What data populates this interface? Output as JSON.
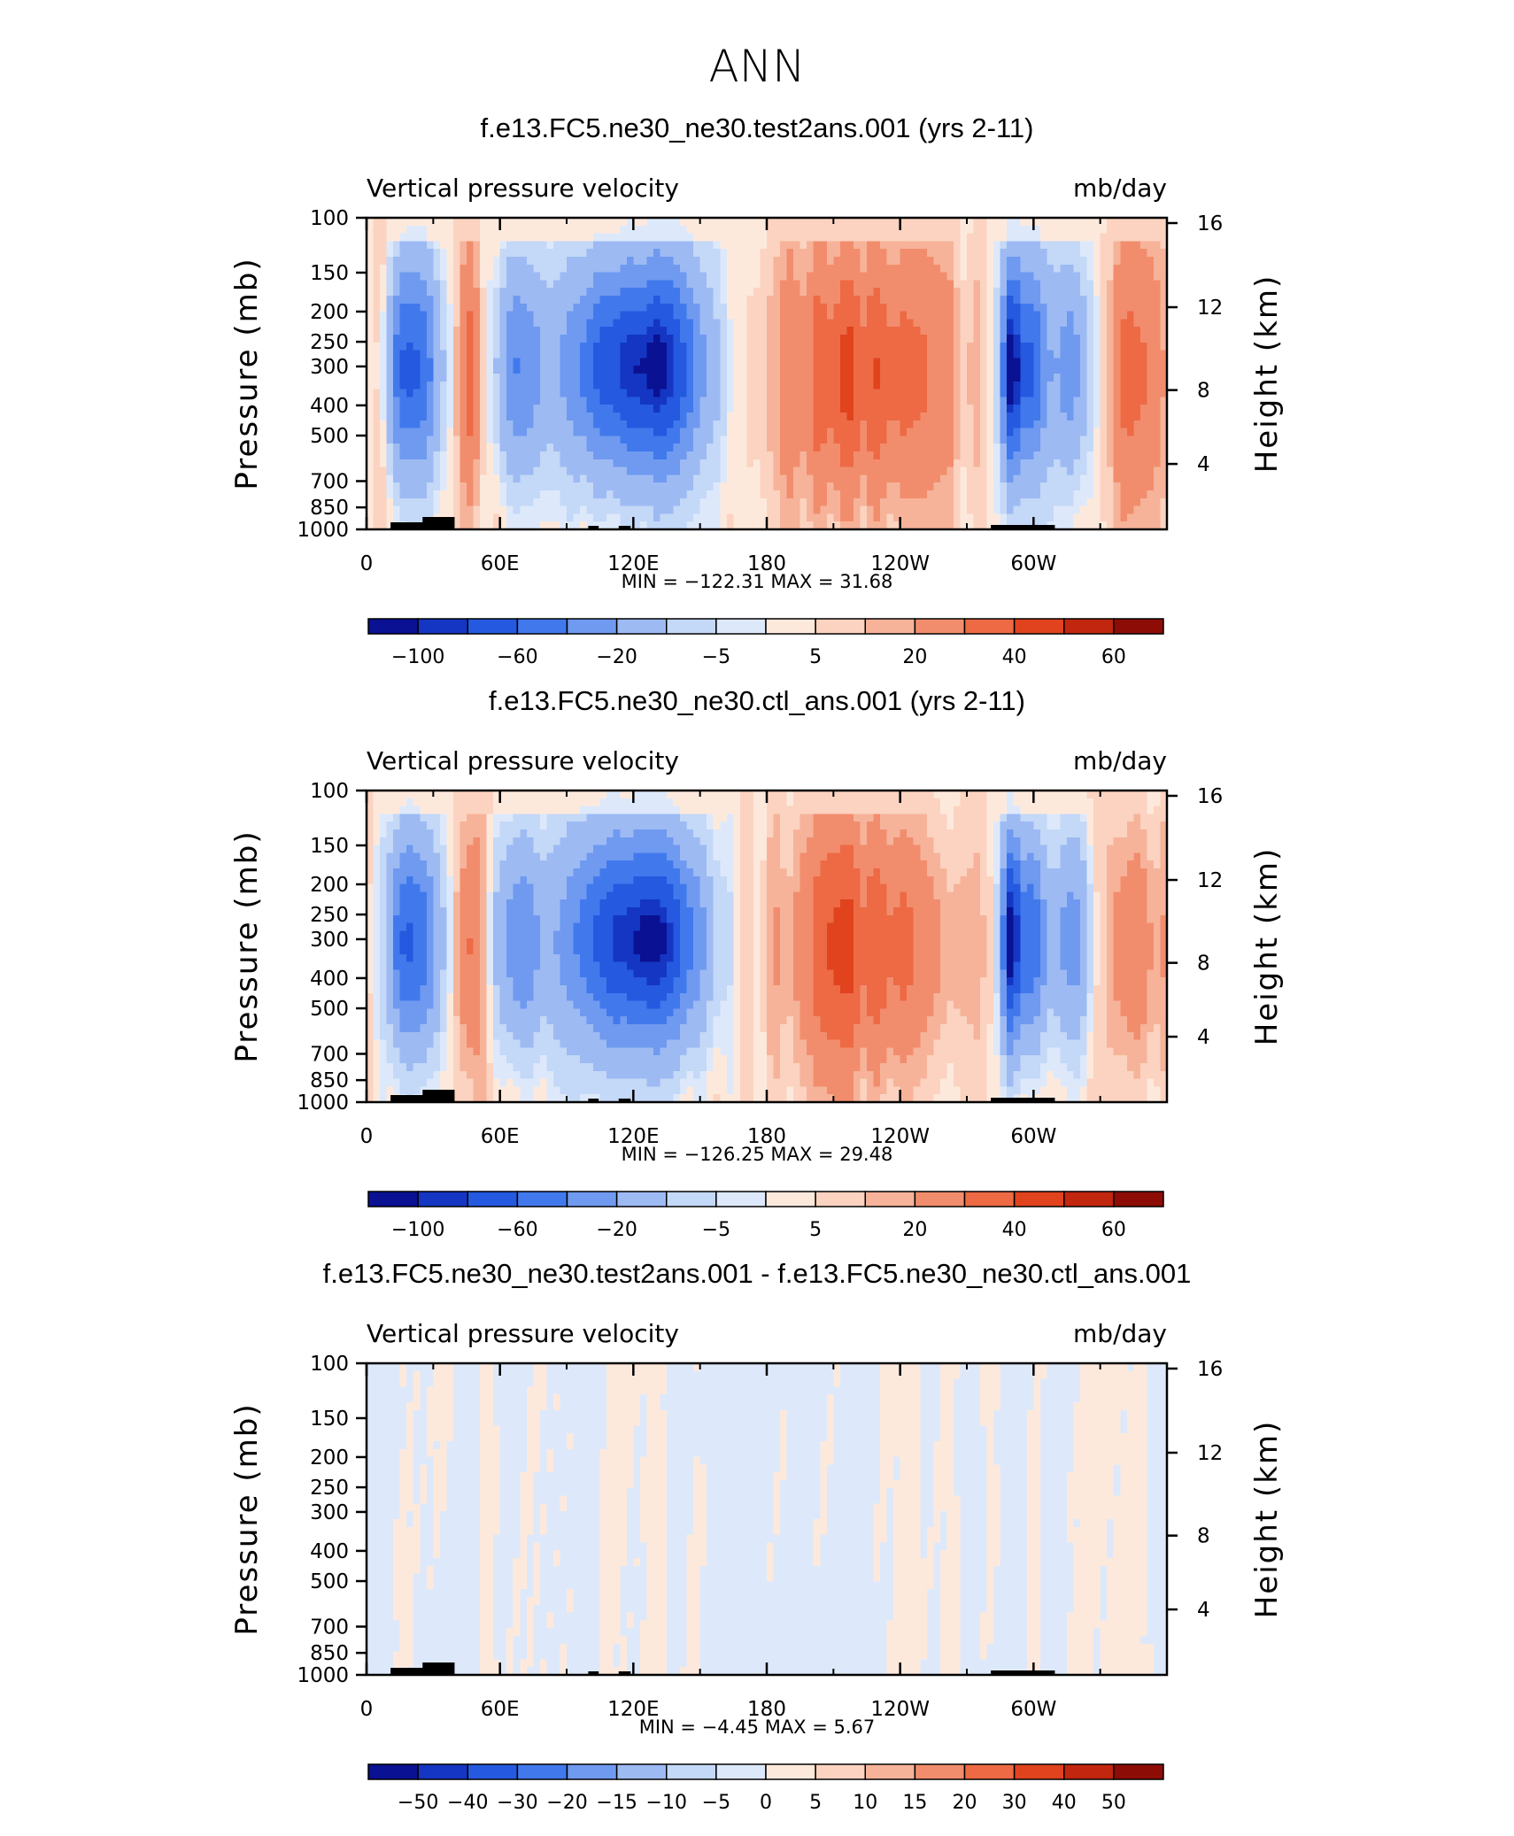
{
  "title": "ANN",
  "chart_data": [
    {
      "type": "heatmap",
      "title": "f.e13.FC5.ne30_ne30.test2ans.001 (yrs 2-11)",
      "left_label": "Vertical pressure velocity",
      "right_label": "mb/day",
      "ylabel": "Pressure (mb)",
      "ylabel_right": "Height (km)",
      "x_ticks": [
        "0",
        "60E",
        "120E",
        "180",
        "120W",
        "60W"
      ],
      "y_ticks": [
        "100",
        "150",
        "200",
        "250",
        "300",
        "400",
        "500",
        "700",
        "850",
        "1000"
      ],
      "y_ticks_right": [
        "16",
        "12",
        "8",
        "4"
      ],
      "stats": "MIN =  −122.31   MAX =   31.68",
      "colorbar_labels": [
        "−100",
        "−60",
        "−20",
        "−5",
        "5",
        "20",
        "40",
        "60"
      ],
      "ylim": [
        1000,
        100
      ],
      "xlim": [
        0,
        360
      ]
    },
    {
      "type": "heatmap",
      "title": "f.e13.FC5.ne30_ne30.ctl_ans.001 (yrs 2-11)",
      "left_label": "Vertical pressure velocity",
      "right_label": "mb/day",
      "ylabel": "Pressure (mb)",
      "ylabel_right": "Height (km)",
      "x_ticks": [
        "0",
        "60E",
        "120E",
        "180",
        "120W",
        "60W"
      ],
      "y_ticks": [
        "100",
        "150",
        "200",
        "250",
        "300",
        "400",
        "500",
        "700",
        "850",
        "1000"
      ],
      "y_ticks_right": [
        "16",
        "12",
        "8",
        "4"
      ],
      "stats": "MIN =  −126.25   MAX =   29.48",
      "colorbar_labels": [
        "−100",
        "−60",
        "−20",
        "−5",
        "5",
        "20",
        "40",
        "60"
      ],
      "ylim": [
        1000,
        100
      ],
      "xlim": [
        0,
        360
      ]
    },
    {
      "type": "heatmap",
      "title": "f.e13.FC5.ne30_ne30.test2ans.001 - f.e13.FC5.ne30_ne30.ctl_ans.001",
      "left_label": "Vertical pressure velocity",
      "right_label": "mb/day",
      "ylabel": "Pressure (mb)",
      "ylabel_right": "Height (km)",
      "x_ticks": [
        "0",
        "60E",
        "120E",
        "180",
        "120W",
        "60W"
      ],
      "y_ticks": [
        "100",
        "150",
        "200",
        "250",
        "300",
        "400",
        "500",
        "700",
        "850",
        "1000"
      ],
      "y_ticks_right": [
        "16",
        "12",
        "8",
        "4"
      ],
      "stats": "MIN =    −4.45   MAX =     5.67",
      "colorbar_labels": [
        "−50",
        "−40",
        "−30",
        "−20",
        "−15",
        "−10",
        "−5",
        "0",
        "5",
        "10",
        "15",
        "20",
        "30",
        "40",
        "50"
      ],
      "ylim": [
        1000,
        100
      ],
      "xlim": [
        0,
        360
      ]
    }
  ],
  "colors": {
    "palette": [
      "#0a1192",
      "#1436c3",
      "#2459e0",
      "#4179ed",
      "#6f9af0",
      "#9dbaf3",
      "#c4d8f7",
      "#dde9fb",
      "#fde9dc",
      "#fbd3c0",
      "#f6b39a",
      "#f18d6d",
      "#ed6a44",
      "#e0431e",
      "#c2260f",
      "#8e0c06"
    ]
  }
}
